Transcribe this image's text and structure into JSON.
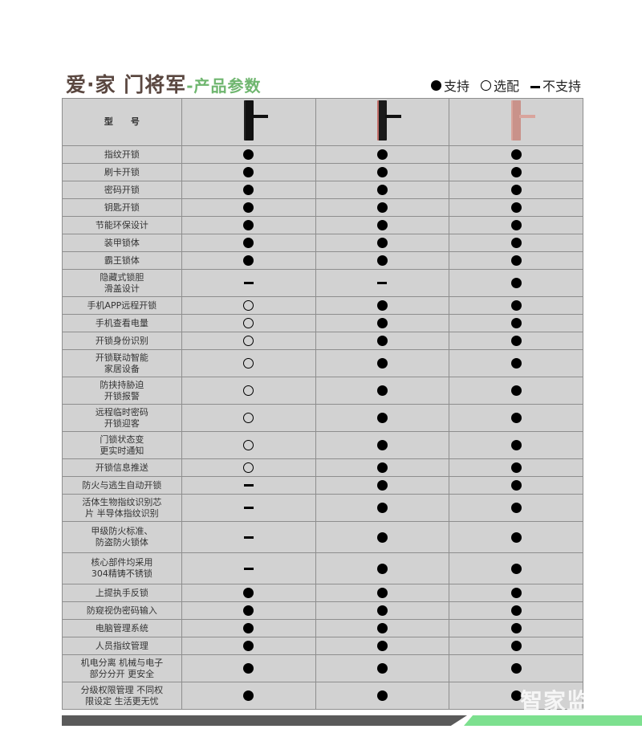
{
  "header": {
    "brand": "爱·家 门将军",
    "subtitle": "-产品参数"
  },
  "legend": {
    "full": "支持",
    "optional": "选配",
    "none": "不支持"
  },
  "table": {
    "model_label": "型　　号",
    "models": [
      {
        "color": "#111111",
        "accent": "#222222"
      },
      {
        "color": "#1a1a1a",
        "accent": "#c4706a"
      },
      {
        "color": "#c9928a",
        "accent": "#d9a49c"
      }
    ],
    "rows": [
      {
        "label": "指纹开锁",
        "values": [
          "full",
          "full",
          "full"
        ]
      },
      {
        "label": "刷卡开锁",
        "values": [
          "full",
          "full",
          "full"
        ]
      },
      {
        "label": "密码开锁",
        "values": [
          "full",
          "full",
          "full"
        ]
      },
      {
        "label": "钥匙开锁",
        "values": [
          "full",
          "full",
          "full"
        ]
      },
      {
        "label": "节能环保设计",
        "values": [
          "full",
          "full",
          "full"
        ]
      },
      {
        "label": "装甲锁体",
        "values": [
          "full",
          "full",
          "full"
        ]
      },
      {
        "label": "霸王锁体",
        "values": [
          "full",
          "full",
          "full"
        ]
      },
      {
        "label": "隐藏式锁胆\n滑盖设计",
        "values": [
          "none",
          "none",
          "full"
        ]
      },
      {
        "label": "手机APP远程开锁",
        "values": [
          "optional",
          "full",
          "full"
        ]
      },
      {
        "label": "手机查看电量",
        "values": [
          "optional",
          "full",
          "full"
        ]
      },
      {
        "label": "开锁身份识别",
        "values": [
          "optional",
          "full",
          "full"
        ]
      },
      {
        "label": "开锁联动智能\n家居设备",
        "values": [
          "optional",
          "full",
          "full"
        ]
      },
      {
        "label": "防挟持胁迫\n开锁报警",
        "values": [
          "optional",
          "full",
          "full"
        ]
      },
      {
        "label": "远程临时密码\n开锁迎客",
        "values": [
          "optional",
          "full",
          "full"
        ]
      },
      {
        "label": "门锁状态变\n更实时通知",
        "values": [
          "optional",
          "full",
          "full"
        ]
      },
      {
        "label": "开锁信息推送",
        "values": [
          "optional",
          "full",
          "full"
        ]
      },
      {
        "label": "防火与逃生自动开锁",
        "values": [
          "none",
          "full",
          "full"
        ]
      },
      {
        "label": "活体生物指纹识别芯\n片 半导体指纹识别",
        "values": [
          "none",
          "full",
          "full"
        ]
      },
      {
        "label": "甲级防火标准、\n防盗防火锁体",
        "values": [
          "none",
          "full",
          "full"
        ]
      },
      {
        "label": "核心部件均采用\n304精铸不锈锁",
        "values": [
          "none",
          "full",
          "full"
        ]
      },
      {
        "label": "上提执手反锁",
        "values": [
          "full",
          "full",
          "full"
        ]
      },
      {
        "label": "防窥视伪密码输入",
        "values": [
          "full",
          "full",
          "full"
        ]
      },
      {
        "label": "电脑管理系统",
        "values": [
          "full",
          "full",
          "full"
        ]
      },
      {
        "label": "人员指纹管理",
        "values": [
          "full",
          "full",
          "full"
        ]
      },
      {
        "label": "机电分离 机械与电子\n部分分开 更安全",
        "values": [
          "full",
          "full",
          "full"
        ]
      },
      {
        "label": "分级权限管理 不同权\n限设定 生活更无忧",
        "values": [
          "full",
          "full",
          "full"
        ]
      }
    ]
  },
  "watermark": "智家监控网",
  "colors": {
    "table_bg": "#d2d2d2",
    "title": "#5a4740",
    "subtitle": "#6fb66f",
    "bar_dark": "#5a5a5a",
    "bar_green": "#7de08f"
  }
}
